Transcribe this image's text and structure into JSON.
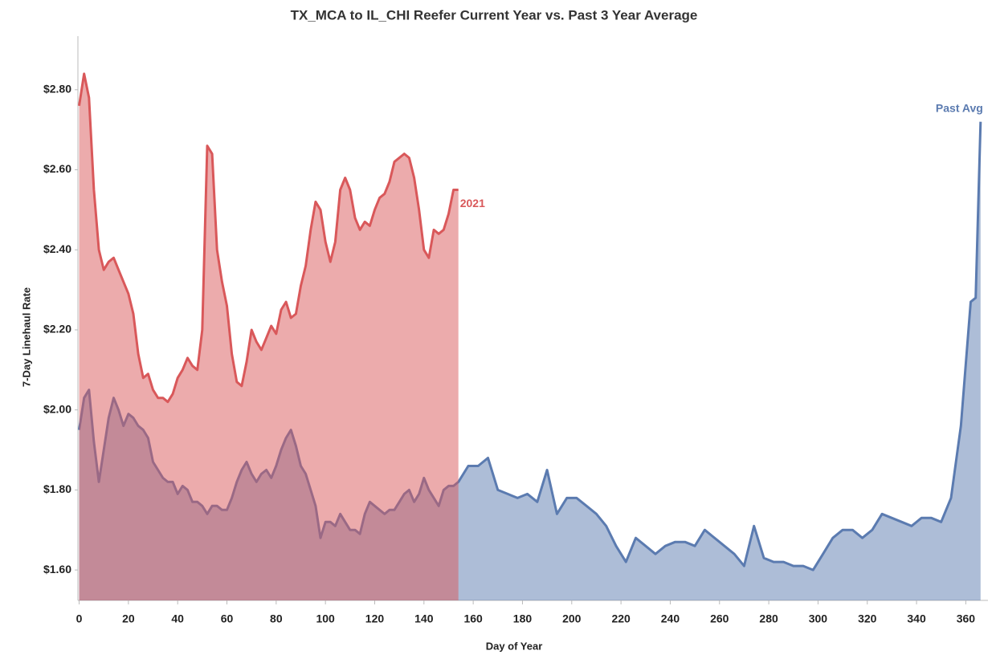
{
  "chart_data": {
    "type": "area",
    "title": "TX_MCA to IL_CHI Reefer Current Year vs. Past 3 Year Average",
    "xlabel": "Day of Year",
    "ylabel": "7-Day Linehaul Rate",
    "xlim": [
      -0.5,
      369
    ],
    "ylim": [
      1.524,
      2.934
    ],
    "xticks": [
      0,
      20,
      40,
      60,
      80,
      100,
      120,
      140,
      160,
      180,
      200,
      220,
      240,
      260,
      280,
      300,
      320,
      340,
      360
    ],
    "yticks": [
      {
        "value": 1.6,
        "label": "$1.60"
      },
      {
        "value": 1.8,
        "label": "$1.80"
      },
      {
        "value": 2.0,
        "label": "$2.00"
      },
      {
        "value": 2.2,
        "label": "$2.20"
      },
      {
        "value": 2.4,
        "label": "$2.40"
      },
      {
        "value": 2.6,
        "label": "$2.60"
      },
      {
        "value": 2.8,
        "label": "$2.80"
      }
    ],
    "x": [
      0,
      2,
      4,
      6,
      8,
      10,
      12,
      14,
      16,
      18,
      20,
      22,
      24,
      26,
      28,
      30,
      32,
      34,
      36,
      38,
      40,
      42,
      44,
      46,
      48,
      50,
      52,
      54,
      56,
      58,
      60,
      62,
      64,
      66,
      68,
      70,
      72,
      74,
      76,
      78,
      80,
      82,
      84,
      86,
      88,
      90,
      92,
      94,
      96,
      98,
      100,
      102,
      104,
      106,
      108,
      110,
      112,
      114,
      116,
      118,
      120,
      122,
      124,
      126,
      128,
      130,
      132,
      134,
      136,
      138,
      140,
      142,
      144,
      146,
      148,
      150,
      152,
      154,
      158,
      162,
      166,
      170,
      174,
      178,
      182,
      186,
      190,
      194,
      198,
      202,
      206,
      210,
      214,
      218,
      222,
      226,
      230,
      234,
      238,
      242,
      246,
      250,
      254,
      258,
      262,
      266,
      270,
      274,
      278,
      282,
      286,
      290,
      294,
      298,
      302,
      306,
      310,
      314,
      318,
      322,
      326,
      330,
      334,
      338,
      342,
      346,
      350,
      354,
      358,
      362,
      364,
      366
    ],
    "series": [
      {
        "name": "Past Avg",
        "color": "#5b7bb0",
        "values": [
          1.95,
          2.03,
          2.05,
          1.92,
          1.82,
          1.9,
          1.98,
          2.03,
          2.0,
          1.96,
          1.99,
          1.98,
          1.96,
          1.95,
          1.93,
          1.87,
          1.85,
          1.83,
          1.82,
          1.82,
          1.79,
          1.81,
          1.8,
          1.77,
          1.77,
          1.76,
          1.74,
          1.76,
          1.76,
          1.75,
          1.75,
          1.78,
          1.82,
          1.85,
          1.87,
          1.84,
          1.82,
          1.84,
          1.85,
          1.83,
          1.86,
          1.9,
          1.93,
          1.95,
          1.91,
          1.86,
          1.84,
          1.8,
          1.76,
          1.68,
          1.72,
          1.72,
          1.71,
          1.74,
          1.72,
          1.7,
          1.7,
          1.69,
          1.74,
          1.77,
          1.76,
          1.75,
          1.74,
          1.75,
          1.75,
          1.77,
          1.79,
          1.8,
          1.77,
          1.79,
          1.83,
          1.8,
          1.78,
          1.76,
          1.8,
          1.81,
          1.81,
          1.82,
          1.86,
          1.86,
          1.88,
          1.8,
          1.79,
          1.78,
          1.79,
          1.77,
          1.85,
          1.74,
          1.78,
          1.78,
          1.76,
          1.74,
          1.71,
          1.66,
          1.62,
          1.68,
          1.66,
          1.64,
          1.66,
          1.67,
          1.67,
          1.66,
          1.7,
          1.68,
          1.66,
          1.64,
          1.61,
          1.71,
          1.63,
          1.62,
          1.62,
          1.61,
          1.61,
          1.6,
          1.64,
          1.68,
          1.7,
          1.7,
          1.68,
          1.7,
          1.74,
          1.73,
          1.72,
          1.71,
          1.73,
          1.73,
          1.72,
          1.78,
          1.96,
          2.27,
          2.28,
          2.72
        ]
      },
      {
        "name": "2021",
        "color": "#d9585a",
        "values": [
          2.76,
          2.84,
          2.78,
          2.55,
          2.4,
          2.35,
          2.37,
          2.38,
          2.35,
          2.32,
          2.29,
          2.24,
          2.14,
          2.08,
          2.09,
          2.05,
          2.03,
          2.03,
          2.02,
          2.04,
          2.08,
          2.1,
          2.13,
          2.11,
          2.1,
          2.2,
          2.66,
          2.64,
          2.4,
          2.32,
          2.26,
          2.14,
          2.07,
          2.06,
          2.12,
          2.2,
          2.17,
          2.15,
          2.18,
          2.21,
          2.19,
          2.25,
          2.27,
          2.23,
          2.24,
          2.31,
          2.36,
          2.45,
          2.52,
          2.5,
          2.42,
          2.37,
          2.42,
          2.55,
          2.58,
          2.55,
          2.48,
          2.45,
          2.47,
          2.46,
          2.5,
          2.53,
          2.54,
          2.57,
          2.62,
          2.63,
          2.64,
          2.63,
          2.58,
          2.5,
          2.4,
          2.38,
          2.45,
          2.44,
          2.45,
          2.49,
          2.55,
          2.55,
          null,
          null,
          null,
          null,
          null,
          null,
          null,
          null,
          null,
          null,
          null,
          null,
          null,
          null,
          null,
          null,
          null,
          null,
          null,
          null,
          null,
          null,
          null,
          null,
          null,
          null,
          null,
          null,
          null,
          null,
          null,
          null,
          null,
          null,
          null,
          null,
          null,
          null,
          null,
          null,
          null,
          null,
          null,
          null,
          null,
          null,
          null,
          null,
          null,
          null,
          null,
          null,
          null,
          null
        ]
      }
    ]
  }
}
